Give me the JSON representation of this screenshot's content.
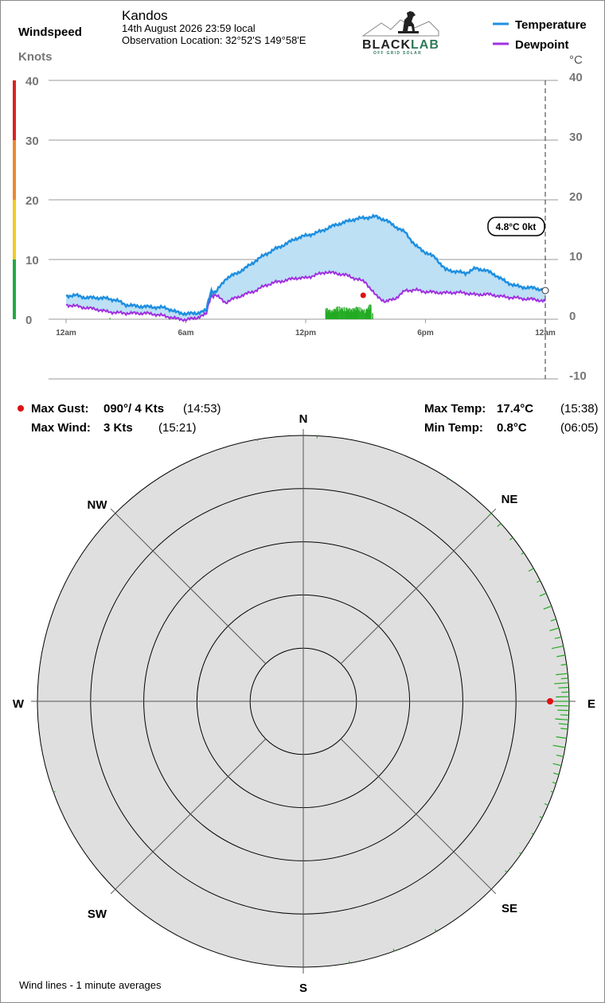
{
  "header": {
    "station": "Kandos",
    "datetime": "14th August 2026  23:59 local",
    "location": "Observation Location: 32°52'S 149°58'E",
    "windspeed_label": "Windspeed",
    "knots_label": "Knots",
    "celsius_label": "°C"
  },
  "logo": {
    "name": "BLACKLAB",
    "black_part": "BLACK",
    "green_part": "LAB",
    "tagline": "OFF GRID SOLAR"
  },
  "legend": {
    "temperature": "Temperature",
    "dewpoint": "Dewpoint"
  },
  "colors": {
    "temperature": "#1e8fe0",
    "dewpoint": "#a030e0",
    "fill": "#bde0f5",
    "wind_bars": "#22aa22",
    "gust": "#dd1111",
    "scale_red": "#dd2222",
    "scale_orange": "#ee8833",
    "scale_yellow": "#eecc22",
    "scale_green": "#22aa44",
    "rose_fill": "#dfdfdf"
  },
  "current_label": "4.8°C  0kt",
  "stats": {
    "max_gust_label": "Max Gust:",
    "max_gust_value": "090°/ 4 Kts",
    "max_gust_time": "(14:53)",
    "max_wind_label": "Max Wind:",
    "max_wind_value": "3 Kts",
    "max_wind_time": "(15:21)",
    "max_temp_label": "Max Temp:",
    "max_temp_value": "17.4°C",
    "max_temp_time": "(15:38)",
    "min_temp_label": "Min Temp:",
    "min_temp_value": "0.8°C",
    "min_temp_time": "(06:05)"
  },
  "compass": {
    "n": "N",
    "ne": "NE",
    "e": "E",
    "se": "SE",
    "s": "S",
    "sw": "SW",
    "w": "W",
    "nw": "NW"
  },
  "footer_note": "Wind lines - 1 minute averages",
  "chart_data": {
    "type": "line",
    "x_unit": "hour",
    "x_ticks": [
      "12am",
      "6am",
      "12pm",
      "6pm",
      "12am"
    ],
    "x_tick_hours": [
      0,
      6,
      12,
      18,
      24
    ],
    "y_left_ticks": [
      "40",
      "30",
      "20",
      "10",
      "0"
    ],
    "y_left_values": [
      40,
      30,
      20,
      10,
      0
    ],
    "y_right_ticks": [
      "40",
      "30",
      "20",
      "10",
      "0",
      "-10"
    ],
    "y_right_values": [
      40,
      30,
      20,
      10,
      0,
      -10
    ],
    "ylim_celsius": [
      -10,
      40
    ],
    "ylim_knots": [
      0,
      40
    ],
    "grid": true,
    "series": [
      {
        "name": "Temperature",
        "x": [
          0,
          0.5,
          1,
          1.5,
          2,
          2.5,
          3,
          3.5,
          4,
          4.5,
          5,
          5.5,
          6,
          6.5,
          7,
          7.25,
          7.5,
          8,
          8.5,
          9,
          9.5,
          10,
          10.5,
          11,
          11.5,
          12,
          12.5,
          13,
          13.5,
          14,
          14.5,
          15,
          15.5,
          16,
          16.5,
          17,
          17.5,
          18,
          18.5,
          19,
          19.5,
          20,
          20.5,
          21,
          21.5,
          22,
          22.5,
          23,
          23.5,
          24
        ],
        "y": [
          3.9,
          4.0,
          3.6,
          3.6,
          3.5,
          3.2,
          2.4,
          2.2,
          2.1,
          2.0,
          1.9,
          1.2,
          0.9,
          1.0,
          1.4,
          4.6,
          4.5,
          6.8,
          7.6,
          8.6,
          9.8,
          10.9,
          11.8,
          12.6,
          13.5,
          14.0,
          14.4,
          15.1,
          15.8,
          16.3,
          16.8,
          17.0,
          17.2,
          16.6,
          15.5,
          14.5,
          12.3,
          11.2,
          10.3,
          8.3,
          8.0,
          7.7,
          8.5,
          8.2,
          7.4,
          6.3,
          5.6,
          5.3,
          5.2,
          4.8
        ]
      },
      {
        "name": "Dewpoint",
        "x": [
          0,
          0.5,
          1,
          1.5,
          2,
          2.5,
          3,
          3.5,
          4,
          4.5,
          5,
          5.5,
          6,
          6.5,
          7,
          7.25,
          7.5,
          8,
          8.5,
          9,
          9.5,
          10,
          10.5,
          11,
          11.5,
          12,
          12.5,
          13,
          13.5,
          14,
          14.5,
          15,
          15.5,
          16,
          16.5,
          17,
          17.5,
          18,
          18.5,
          19,
          19.5,
          20,
          20.5,
          21,
          21.5,
          22,
          22.5,
          23,
          23.5,
          24
        ],
        "y": [
          2.4,
          2.2,
          1.9,
          1.7,
          1.3,
          1.1,
          1.0,
          1.0,
          1.0,
          0.8,
          0.5,
          0.1,
          -0.1,
          0.2,
          0.8,
          3.8,
          4.0,
          2.8,
          3.6,
          4.2,
          4.8,
          5.7,
          6.2,
          6.5,
          6.9,
          6.9,
          7.4,
          7.9,
          7.7,
          7.4,
          6.8,
          6.2,
          4.0,
          2.9,
          3.5,
          4.8,
          4.9,
          4.6,
          4.5,
          4.4,
          4.5,
          4.4,
          4.1,
          4.2,
          4.0,
          3.7,
          3.6,
          3.4,
          3.3,
          3.0
        ]
      },
      {
        "name": "Windspeed",
        "unit": "kts",
        "x": [
          2.2,
          13.0,
          13.3,
          13.6,
          14.0,
          14.3,
          14.6,
          15.0,
          15.3,
          15.35
        ],
        "y": [
          0.2,
          2.0,
          1.5,
          2.2,
          2.0,
          1.8,
          2.2,
          1.6,
          3.0,
          1.0
        ]
      }
    ],
    "max_gust_point": {
      "x": 14.88,
      "y_knots": 4
    },
    "current_point": {
      "x": 24,
      "y": 4.8
    },
    "wind_rose": {
      "type": "radial",
      "unit": "kts",
      "ring_count": 5,
      "max_gust_direction_deg": 90,
      "max_gust_speed_kts": 4,
      "directions_deg": [
        3,
        350,
        33,
        45,
        48,
        52,
        56,
        60,
        63,
        66,
        69,
        72,
        74,
        76,
        78,
        80,
        82,
        84,
        85,
        86,
        87,
        88,
        89,
        90,
        91,
        92,
        93,
        94,
        95,
        96,
        98,
        100,
        102,
        104,
        106,
        108,
        110,
        113,
        116,
        120,
        125,
        130,
        150,
        160,
        170,
        250
      ],
      "speeds_kts": [
        0.5,
        0.3,
        0.3,
        0.8,
        1.0,
        0.8,
        0.6,
        1.2,
        0.8,
        1.5,
        1.8,
        1.2,
        2.0,
        1.4,
        2.5,
        1.8,
        1.2,
        2.5,
        1.5,
        3.0,
        2.2,
        1.6,
        2.8,
        2.6,
        3.0,
        2.4,
        1.8,
        2.8,
        2.0,
        1.5,
        2.2,
        2.6,
        1.5,
        1.8,
        1.2,
        0.8,
        0.5,
        0.8,
        0.6,
        0.4,
        0.4,
        0.5,
        0.5,
        0.5,
        0.4,
        0.4
      ]
    }
  }
}
